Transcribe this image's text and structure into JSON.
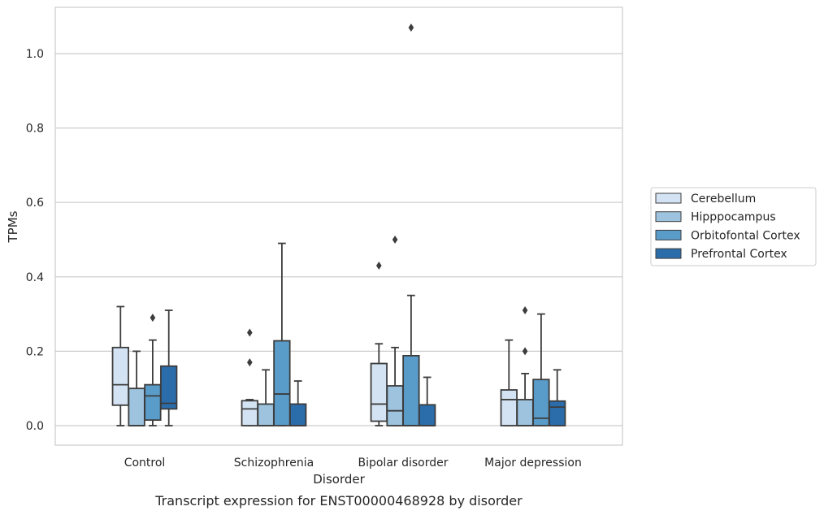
{
  "chart_data": {
    "type": "box",
    "caption": "Transcript expression for ENST00000468928 by disorder",
    "xlabel": "Disorder",
    "ylabel": "TPMs",
    "ylim": [
      -0.05,
      1.13
    ],
    "yticks": [
      0.0,
      0.2,
      0.4,
      0.6,
      0.8,
      1.0
    ],
    "ytick_labels": [
      "0.0",
      "0.2",
      "0.4",
      "0.6",
      "0.8",
      "1.0"
    ],
    "grid": "horizontal",
    "legend_position": "right",
    "categories": [
      "Control",
      "Schizophrenia",
      "Bipolar disorder",
      "Major depression"
    ],
    "series": [
      {
        "name": "Cerebellum",
        "color": "#d4e3f3",
        "boxes": [
          {
            "whislo": 0.0,
            "q1": 0.055,
            "median": 0.11,
            "q3": 0.21,
            "whishi": 0.32,
            "fliers": []
          },
          {
            "whislo": 0.0,
            "q1": 0.0,
            "median": 0.045,
            "q3": 0.067,
            "whishi": 0.07,
            "fliers": [
              0.17,
              0.25
            ]
          },
          {
            "whislo": 0.0,
            "q1": 0.012,
            "median": 0.058,
            "q3": 0.167,
            "whishi": 0.22,
            "fliers": [
              0.43
            ]
          },
          {
            "whislo": 0.0,
            "q1": 0.0,
            "median": 0.07,
            "q3": 0.096,
            "whishi": 0.23,
            "fliers": []
          }
        ]
      },
      {
        "name": "Hipppocampus",
        "color": "#9dc3df",
        "boxes": [
          {
            "whislo": 0.0,
            "q1": 0.0,
            "median": 0.0,
            "q3": 0.1,
            "whishi": 0.2,
            "fliers": []
          },
          {
            "whislo": 0.0,
            "q1": 0.0,
            "median": 0.0,
            "q3": 0.058,
            "whishi": 0.15,
            "fliers": []
          },
          {
            "whislo": 0.0,
            "q1": 0.0,
            "median": 0.04,
            "q3": 0.107,
            "whishi": 0.21,
            "fliers": [
              0.5
            ]
          },
          {
            "whislo": 0.0,
            "q1": 0.0,
            "median": 0.0,
            "q3": 0.07,
            "whishi": 0.14,
            "fliers": [
              0.2,
              0.31
            ]
          }
        ]
      },
      {
        "name": "Orbitofontal Cortex",
        "color": "#5a9cc9",
        "boxes": [
          {
            "whislo": 0.0,
            "q1": 0.015,
            "median": 0.08,
            "q3": 0.11,
            "whishi": 0.23,
            "fliers": [
              0.29
            ]
          },
          {
            "whislo": 0.0,
            "q1": 0.0,
            "median": 0.085,
            "q3": 0.228,
            "whishi": 0.49,
            "fliers": []
          },
          {
            "whislo": 0.0,
            "q1": 0.0,
            "median": 0.0,
            "q3": 0.188,
            "whishi": 0.35,
            "fliers": [
              1.07
            ]
          },
          {
            "whislo": 0.0,
            "q1": 0.0,
            "median": 0.02,
            "q3": 0.124,
            "whishi": 0.3,
            "fliers": []
          }
        ]
      },
      {
        "name": "Prefrontal Cortex",
        "color": "#2b6dab",
        "boxes": [
          {
            "whislo": 0.0,
            "q1": 0.045,
            "median": 0.06,
            "q3": 0.16,
            "whishi": 0.31,
            "fliers": []
          },
          {
            "whislo": 0.0,
            "q1": 0.0,
            "median": 0.0,
            "q3": 0.058,
            "whishi": 0.12,
            "fliers": []
          },
          {
            "whislo": 0.0,
            "q1": 0.0,
            "median": 0.0,
            "q3": 0.056,
            "whishi": 0.13,
            "fliers": []
          },
          {
            "whislo": 0.0,
            "q1": 0.0,
            "median": 0.05,
            "q3": 0.066,
            "whishi": 0.15,
            "fliers": []
          }
        ]
      }
    ]
  }
}
